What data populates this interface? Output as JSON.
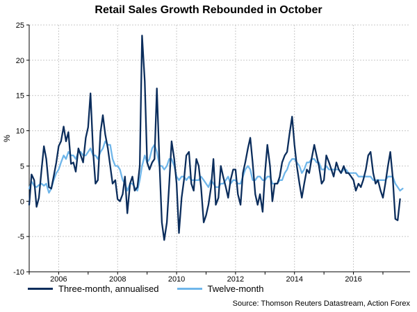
{
  "chart_data": {
    "type": "line",
    "title": "Retail Sales Growth Rebounded in October",
    "ylabel": "%",
    "xlabel": "",
    "ylim": [
      -10,
      25
    ],
    "yticks": [
      25,
      20,
      15,
      10,
      5,
      0,
      -5,
      -10
    ],
    "xlim": [
      2005.0,
      2017.92
    ],
    "xticks": [
      2006,
      2008,
      2010,
      2012,
      2014,
      2016
    ],
    "source": "Source: Thomson Reuters Datastream, Action Forex",
    "series": [
      {
        "name": "Three-month, annualised",
        "color": "#0b2d5c",
        "points": [
          [
            2005.0,
            -0.5
          ],
          [
            2005.08,
            3.8
          ],
          [
            2005.17,
            3.0
          ],
          [
            2005.25,
            -0.8
          ],
          [
            2005.33,
            0.5
          ],
          [
            2005.42,
            4.5
          ],
          [
            2005.5,
            7.8
          ],
          [
            2005.58,
            6.0
          ],
          [
            2005.67,
            2.0
          ],
          [
            2005.75,
            1.8
          ],
          [
            2005.83,
            3.5
          ],
          [
            2005.92,
            5.5
          ],
          [
            2006.0,
            7.8
          ],
          [
            2006.08,
            8.5
          ],
          [
            2006.17,
            10.6
          ],
          [
            2006.25,
            8.5
          ],
          [
            2006.33,
            9.8
          ],
          [
            2006.42,
            5.3
          ],
          [
            2006.5,
            5.5
          ],
          [
            2006.58,
            4.2
          ],
          [
            2006.67,
            7.5
          ],
          [
            2006.75,
            6.5
          ],
          [
            2006.83,
            5.5
          ],
          [
            2006.92,
            9.0
          ],
          [
            2007.0,
            10.5
          ],
          [
            2007.08,
            15.3
          ],
          [
            2007.17,
            7.0
          ],
          [
            2007.25,
            2.5
          ],
          [
            2007.33,
            3.0
          ],
          [
            2007.42,
            9.8
          ],
          [
            2007.5,
            12.2
          ],
          [
            2007.58,
            9.5
          ],
          [
            2007.67,
            7.5
          ],
          [
            2007.75,
            5.0
          ],
          [
            2007.83,
            2.5
          ],
          [
            2007.92,
            3.0
          ],
          [
            2008.0,
            0.3
          ],
          [
            2008.08,
            0.0
          ],
          [
            2008.17,
            1.0
          ],
          [
            2008.25,
            3.5
          ],
          [
            2008.33,
            -1.7
          ],
          [
            2008.42,
            2.5
          ],
          [
            2008.5,
            3.5
          ],
          [
            2008.58,
            1.5
          ],
          [
            2008.67,
            2.0
          ],
          [
            2008.75,
            5.0
          ],
          [
            2008.83,
            23.5
          ],
          [
            2008.92,
            17.0
          ],
          [
            2009.0,
            5.5
          ],
          [
            2009.08,
            4.5
          ],
          [
            2009.17,
            5.5
          ],
          [
            2009.25,
            6.0
          ],
          [
            2009.33,
            16.0
          ],
          [
            2009.42,
            5.3
          ],
          [
            2009.5,
            -3.0
          ],
          [
            2009.58,
            -5.5
          ],
          [
            2009.67,
            -3.0
          ],
          [
            2009.75,
            2.5
          ],
          [
            2009.83,
            8.5
          ],
          [
            2009.92,
            6.0
          ],
          [
            2010.0,
            2.5
          ],
          [
            2010.08,
            -4.5
          ],
          [
            2010.17,
            0.5
          ],
          [
            2010.25,
            3.0
          ],
          [
            2010.33,
            6.5
          ],
          [
            2010.42,
            7.0
          ],
          [
            2010.5,
            2.5
          ],
          [
            2010.58,
            1.5
          ],
          [
            2010.67,
            6.0
          ],
          [
            2010.75,
            5.0
          ],
          [
            2010.83,
            2.0
          ],
          [
            2010.92,
            -3.0
          ],
          [
            2011.0,
            -2.0
          ],
          [
            2011.08,
            -0.5
          ],
          [
            2011.17,
            2.0
          ],
          [
            2011.25,
            6.0
          ],
          [
            2011.33,
            -0.5
          ],
          [
            2011.42,
            0.5
          ],
          [
            2011.5,
            5.0
          ],
          [
            2011.58,
            3.5
          ],
          [
            2011.67,
            2.0
          ],
          [
            2011.75,
            0.5
          ],
          [
            2011.83,
            3.0
          ],
          [
            2011.92,
            4.5
          ],
          [
            2012.0,
            4.5
          ],
          [
            2012.08,
            1.0
          ],
          [
            2012.17,
            -0.5
          ],
          [
            2012.25,
            4.0
          ],
          [
            2012.33,
            5.5
          ],
          [
            2012.42,
            7.5
          ],
          [
            2012.5,
            9.0
          ],
          [
            2012.58,
            5.5
          ],
          [
            2012.67,
            1.0
          ],
          [
            2012.75,
            -0.5
          ],
          [
            2012.83,
            1.0
          ],
          [
            2012.92,
            -1.5
          ],
          [
            2013.0,
            4.0
          ],
          [
            2013.08,
            8.0
          ],
          [
            2013.17,
            5.0
          ],
          [
            2013.25,
            0.0
          ],
          [
            2013.33,
            2.5
          ],
          [
            2013.42,
            2.5
          ],
          [
            2013.5,
            3.5
          ],
          [
            2013.58,
            5.5
          ],
          [
            2013.67,
            6.5
          ],
          [
            2013.75,
            7.0
          ],
          [
            2013.83,
            9.5
          ],
          [
            2013.92,
            12.0
          ],
          [
            2014.0,
            8.0
          ],
          [
            2014.08,
            5.0
          ],
          [
            2014.17,
            2.5
          ],
          [
            2014.25,
            0.5
          ],
          [
            2014.33,
            2.5
          ],
          [
            2014.42,
            4.5
          ],
          [
            2014.5,
            4.0
          ],
          [
            2014.58,
            6.0
          ],
          [
            2014.67,
            8.0
          ],
          [
            2014.75,
            6.5
          ],
          [
            2014.83,
            5.0
          ],
          [
            2014.92,
            2.5
          ],
          [
            2015.0,
            3.0
          ],
          [
            2015.08,
            6.5
          ],
          [
            2015.17,
            5.5
          ],
          [
            2015.25,
            4.5
          ],
          [
            2015.33,
            3.5
          ],
          [
            2015.42,
            5.5
          ],
          [
            2015.5,
            4.5
          ],
          [
            2015.58,
            4.0
          ],
          [
            2015.67,
            5.0
          ],
          [
            2015.75,
            4.0
          ],
          [
            2015.83,
            4.0
          ],
          [
            2015.92,
            3.5
          ],
          [
            2016.0,
            3.0
          ],
          [
            2016.08,
            1.5
          ],
          [
            2016.17,
            2.5
          ],
          [
            2016.25,
            2.0
          ],
          [
            2016.33,
            3.0
          ],
          [
            2016.42,
            4.5
          ],
          [
            2016.5,
            6.5
          ],
          [
            2016.58,
            7.0
          ],
          [
            2016.67,
            4.0
          ],
          [
            2016.75,
            2.5
          ],
          [
            2016.83,
            3.0
          ],
          [
            2016.92,
            1.5
          ],
          [
            2017.0,
            0.5
          ],
          [
            2017.08,
            2.5
          ],
          [
            2017.17,
            5.0
          ],
          [
            2017.25,
            7.0
          ],
          [
            2017.33,
            3.5
          ],
          [
            2017.42,
            -2.5
          ],
          [
            2017.5,
            -2.7
          ],
          [
            2017.58,
            0.3
          ]
        ]
      },
      {
        "name": "Twelve-month",
        "color": "#6fb6ea",
        "points": [
          [
            2005.0,
            1.8
          ],
          [
            2005.08,
            2.8
          ],
          [
            2005.17,
            2.2
          ],
          [
            2005.25,
            2.0
          ],
          [
            2005.33,
            2.3
          ],
          [
            2005.42,
            2.5
          ],
          [
            2005.5,
            2.2
          ],
          [
            2005.58,
            2.5
          ],
          [
            2005.67,
            1.2
          ],
          [
            2005.75,
            1.8
          ],
          [
            2005.83,
            3.0
          ],
          [
            2005.92,
            4.0
          ],
          [
            2006.0,
            4.5
          ],
          [
            2006.08,
            5.5
          ],
          [
            2006.17,
            6.5
          ],
          [
            2006.25,
            6.0
          ],
          [
            2006.33,
            7.0
          ],
          [
            2006.42,
            6.5
          ],
          [
            2006.5,
            6.5
          ],
          [
            2006.58,
            6.0
          ],
          [
            2006.67,
            7.0
          ],
          [
            2006.75,
            7.0
          ],
          [
            2006.83,
            6.5
          ],
          [
            2006.92,
            6.5
          ],
          [
            2007.0,
            7.0
          ],
          [
            2007.08,
            7.5
          ],
          [
            2007.17,
            6.5
          ],
          [
            2007.25,
            6.5
          ],
          [
            2007.33,
            6.0
          ],
          [
            2007.42,
            7.0
          ],
          [
            2007.5,
            7.5
          ],
          [
            2007.58,
            8.5
          ],
          [
            2007.67,
            8.0
          ],
          [
            2007.75,
            8.0
          ],
          [
            2007.83,
            6.0
          ],
          [
            2007.92,
            5.0
          ],
          [
            2008.0,
            5.0
          ],
          [
            2008.08,
            4.5
          ],
          [
            2008.17,
            3.0
          ],
          [
            2008.25,
            2.5
          ],
          [
            2008.33,
            1.5
          ],
          [
            2008.42,
            2.5
          ],
          [
            2008.5,
            2.5
          ],
          [
            2008.58,
            2.0
          ],
          [
            2008.67,
            1.5
          ],
          [
            2008.75,
            3.0
          ],
          [
            2008.83,
            5.0
          ],
          [
            2008.92,
            6.5
          ],
          [
            2009.0,
            5.5
          ],
          [
            2009.08,
            6.0
          ],
          [
            2009.17,
            7.5
          ],
          [
            2009.25,
            8.0
          ],
          [
            2009.33,
            7.0
          ],
          [
            2009.42,
            5.0
          ],
          [
            2009.5,
            5.0
          ],
          [
            2009.58,
            4.5
          ],
          [
            2009.67,
            5.0
          ],
          [
            2009.75,
            6.0
          ],
          [
            2009.83,
            6.0
          ],
          [
            2009.92,
            5.0
          ],
          [
            2010.0,
            3.5
          ],
          [
            2010.08,
            3.0
          ],
          [
            2010.17,
            3.5
          ],
          [
            2010.25,
            3.5
          ],
          [
            2010.33,
            3.0
          ],
          [
            2010.42,
            3.5
          ],
          [
            2010.5,
            3.0
          ],
          [
            2010.58,
            3.0
          ],
          [
            2010.67,
            3.0
          ],
          [
            2010.75,
            3.0
          ],
          [
            2010.83,
            3.5
          ],
          [
            2010.92,
            3.0
          ],
          [
            2011.0,
            2.5
          ],
          [
            2011.08,
            2.0
          ],
          [
            2011.17,
            3.0
          ],
          [
            2011.25,
            2.5
          ],
          [
            2011.33,
            2.0
          ],
          [
            2011.42,
            2.0
          ],
          [
            2011.5,
            2.5
          ],
          [
            2011.58,
            2.5
          ],
          [
            2011.67,
            3.0
          ],
          [
            2011.75,
            3.5
          ],
          [
            2011.83,
            2.5
          ],
          [
            2011.92,
            3.0
          ],
          [
            2012.0,
            3.0
          ],
          [
            2012.08,
            2.5
          ],
          [
            2012.17,
            2.5
          ],
          [
            2012.25,
            3.5
          ],
          [
            2012.33,
            4.5
          ],
          [
            2012.42,
            5.0
          ],
          [
            2012.5,
            4.5
          ],
          [
            2012.58,
            3.0
          ],
          [
            2012.67,
            3.0
          ],
          [
            2012.75,
            3.5
          ],
          [
            2012.83,
            3.5
          ],
          [
            2012.92,
            3.0
          ],
          [
            2013.0,
            3.0
          ],
          [
            2013.08,
            3.5
          ],
          [
            2013.17,
            3.5
          ],
          [
            2013.25,
            2.5
          ],
          [
            2013.33,
            2.5
          ],
          [
            2013.42,
            2.5
          ],
          [
            2013.5,
            3.0
          ],
          [
            2013.58,
            3.0
          ],
          [
            2013.67,
            4.0
          ],
          [
            2013.75,
            4.5
          ],
          [
            2013.83,
            5.5
          ],
          [
            2013.92,
            6.0
          ],
          [
            2014.0,
            6.0
          ],
          [
            2014.08,
            5.5
          ],
          [
            2014.17,
            5.0
          ],
          [
            2014.25,
            4.0
          ],
          [
            2014.33,
            4.5
          ],
          [
            2014.42,
            5.5
          ],
          [
            2014.5,
            5.5
          ],
          [
            2014.58,
            6.0
          ],
          [
            2014.67,
            6.0
          ],
          [
            2014.75,
            5.5
          ],
          [
            2014.83,
            5.5
          ],
          [
            2014.92,
            4.5
          ],
          [
            2015.0,
            4.5
          ],
          [
            2015.08,
            5.0
          ],
          [
            2015.17,
            4.5
          ],
          [
            2015.25,
            4.5
          ],
          [
            2015.33,
            4.5
          ],
          [
            2015.42,
            4.5
          ],
          [
            2015.5,
            4.5
          ],
          [
            2015.58,
            4.0
          ],
          [
            2015.67,
            4.5
          ],
          [
            2015.75,
            4.5
          ],
          [
            2015.83,
            4.0
          ],
          [
            2015.92,
            4.0
          ],
          [
            2016.0,
            4.0
          ],
          [
            2016.08,
            4.0
          ],
          [
            2016.17,
            3.5
          ],
          [
            2016.25,
            3.5
          ],
          [
            2016.33,
            3.5
          ],
          [
            2016.42,
            3.5
          ],
          [
            2016.5,
            3.5
          ],
          [
            2016.58,
            3.5
          ],
          [
            2016.67,
            3.0
          ],
          [
            2016.75,
            3.0
          ],
          [
            2016.83,
            3.0
          ],
          [
            2016.92,
            3.0
          ],
          [
            2017.0,
            3.0
          ],
          [
            2017.08,
            3.0
          ],
          [
            2017.17,
            3.5
          ],
          [
            2017.25,
            3.5
          ],
          [
            2017.33,
            3.5
          ],
          [
            2017.42,
            2.5
          ],
          [
            2017.5,
            2.0
          ],
          [
            2017.58,
            1.5
          ],
          [
            2017.67,
            1.8
          ]
        ]
      }
    ]
  }
}
